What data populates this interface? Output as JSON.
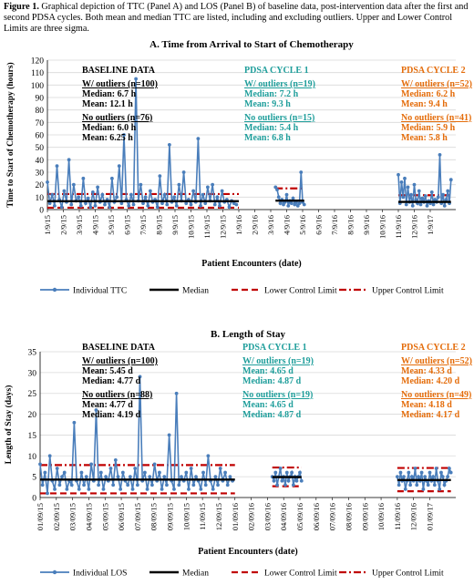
{
  "caption": {
    "label": "Figure 1.",
    "text": "Graphical depiction of TTC (Panel A) and LOS (Panel B) of baseline data, post-intervention data after the first and second PDSA cycles. Both mean and median TTC are listed, including and excluding outliers. Upper and Lower Control Limits are three sigma."
  },
  "colors": {
    "series": "#4a7ebb",
    "median": "#000000",
    "limit": "#c00000",
    "cycle1": "#1f9e9b",
    "cycle2": "#e46c0a",
    "grid": "#d9d9d9"
  },
  "chart_data": [
    {
      "type": "line",
      "title": "A. Time from Arrival to Start of Chemotherapy",
      "ylabel": "Time to Start of Chemotherapy (hours)",
      "xlabel": "Patient Encounters (date)",
      "ylim": [
        0,
        120
      ],
      "yticks": [
        "0",
        "10",
        "20",
        "30",
        "40",
        "50",
        "60",
        "70",
        "80",
        "90",
        "100",
        "110",
        "120"
      ],
      "xticks": [
        "1/9/15",
        "2/9/15",
        "3/9/15",
        "4/9/15",
        "5/9/15",
        "6/9/15",
        "7/9/15",
        "8/9/15",
        "9/9/15",
        "10/9/15",
        "11/9/15",
        "12/9/15",
        "1/9/16",
        "2/9/16",
        "3/9/16",
        "4/9/16",
        "5/9/16",
        "6/9/16",
        "7/9/16",
        "8/9/16",
        "9/9/16",
        "10/9/16",
        "11/9/16",
        "12/9/16",
        "1/9/17"
      ],
      "grid": "horizontal",
      "legend": [
        "Individual TTC",
        "Median",
        "Lower Control Limit",
        "Upper Control Limit"
      ],
      "segments": [
        {
          "name": "Baseline",
          "x": [
            0.0,
            0.15,
            0.3,
            0.45,
            0.6,
            0.75,
            0.9,
            1.05,
            1.2,
            1.35,
            1.5,
            1.65,
            1.8,
            1.95,
            2.1,
            2.25,
            2.4,
            2.55,
            2.7,
            2.85,
            3.0,
            3.15,
            3.3,
            3.45,
            3.6,
            3.75,
            3.9,
            4.05,
            4.2,
            4.35,
            4.5,
            4.65,
            4.8,
            4.95,
            5.1,
            5.25,
            5.4,
            5.55,
            5.7,
            5.85,
            6.0,
            6.15,
            6.3,
            6.45,
            6.6,
            6.75,
            6.9,
            7.05,
            7.2,
            7.35,
            7.5,
            7.65,
            7.8,
            7.95,
            8.1,
            8.25,
            8.4,
            8.55,
            8.7,
            8.85,
            9.0,
            9.15,
            9.3,
            9.45,
            9.6,
            9.75,
            9.9,
            10.05,
            10.2,
            10.35,
            10.5,
            10.65,
            10.8,
            10.95,
            11.1,
            11.25,
            11.4,
            11.55,
            11.7,
            11.85
          ],
          "y": [
            22,
            5,
            12,
            3,
            35,
            8,
            2,
            15,
            6,
            40,
            4,
            20,
            7,
            10,
            3,
            25,
            5,
            9,
            2,
            14,
            3,
            18,
            6,
            12,
            4,
            8,
            2,
            25,
            6,
            10,
            35,
            5,
            60,
            8,
            3,
            12,
            4,
            105,
            7,
            20,
            5,
            10,
            3,
            15,
            6,
            8,
            2,
            27,
            5,
            12,
            4,
            52,
            6,
            10,
            3,
            20,
            7,
            30,
            5,
            8,
            4,
            15,
            6,
            57,
            3,
            12,
            5,
            18,
            7,
            20,
            4,
            10,
            3,
            15,
            6,
            8,
            2,
            7,
            5,
            4
          ]
        },
        {
          "name": "PDSA Cycle 1",
          "x": [
            14.3,
            14.4,
            14.5,
            14.6,
            14.7,
            14.8,
            14.9,
            15.0,
            15.1,
            15.2,
            15.3,
            15.4,
            15.5,
            15.6,
            15.7,
            15.8,
            15.9,
            16.0,
            16.1
          ],
          "y": [
            18,
            16,
            10,
            5,
            8,
            4,
            6,
            12,
            3,
            7,
            5,
            9,
            4,
            6,
            3,
            5,
            30,
            6,
            4
          ]
        },
        {
          "name": "PDSA Cycle 2",
          "x": [
            22.0,
            22.1,
            22.2,
            22.3,
            22.4,
            22.5,
            22.6,
            22.7,
            22.8,
            22.9,
            23.0,
            23.1,
            23.2,
            23.3,
            23.4,
            23.5,
            23.6,
            23.7,
            23.8,
            23.9,
            24.0,
            24.1,
            24.2,
            24.3,
            24.4,
            24.5,
            24.6,
            24.7,
            24.8,
            24.9,
            25.0,
            25.1,
            25.2,
            25.3
          ],
          "y": [
            28,
            5,
            22,
            10,
            25,
            4,
            18,
            6,
            12,
            3,
            20,
            8,
            5,
            15,
            4,
            9,
            6,
            11,
            3,
            7,
            5,
            14,
            4,
            8,
            6,
            10,
            44,
            5,
            12,
            3,
            8,
            15,
            5,
            24
          ]
        }
      ],
      "median": [
        {
          "x": [
            0,
            12
          ],
          "y": 6.7
        },
        {
          "x": [
            14.3,
            16.1
          ],
          "y": 7.2
        },
        {
          "x": [
            22,
            25.3
          ],
          "y": 6.2
        }
      ],
      "lower_control_limit": [
        {
          "x": [
            0,
            12
          ],
          "y": 1.5
        }
      ],
      "upper_control_limit": [
        {
          "x": [
            0,
            12
          ],
          "y": 12.5
        },
        {
          "x": [
            14.3,
            16.1
          ],
          "y": 17
        },
        {
          "x": [
            22,
            25.3
          ],
          "y": 11.5
        }
      ],
      "annotations": [
        {
          "lines": [
            "BASELINE DATA"
          ],
          "color": "#000000",
          "pos": "baseline"
        },
        {
          "lines": [
            "W/ outliers (n=100)",
            "Median: 6.7 h",
            "Mean: 12.1 h"
          ],
          "color": "#000000",
          "pos": "baseline"
        },
        {
          "lines": [
            "No outliers (n=76)",
            "Median: 6.0 h",
            "Mean: 6.25 h"
          ],
          "color": "#000000",
          "pos": "baseline"
        },
        {
          "lines": [
            "PDSA CYCLE 1"
          ],
          "color": "#1f9e9b",
          "pos": "cycle1"
        },
        {
          "lines": [
            "W/ outliers (n=19)",
            "Median: 7.2 h",
            "Mean: 9.3 h"
          ],
          "color": "#1f9e9b",
          "pos": "cycle1"
        },
        {
          "lines": [
            "No outliers (n=15)",
            "Median: 5.4 h",
            "Mean: 6.8 h"
          ],
          "color": "#1f9e9b",
          "pos": "cycle1"
        },
        {
          "lines": [
            "PDSA CYCLE 2"
          ],
          "color": "#e46c0a",
          "pos": "cycle2"
        },
        {
          "lines": [
            "W/ outliers (n=52)",
            "Median: 6.2 h",
            "Mean: 9.4 h"
          ],
          "color": "#e46c0a",
          "pos": "cycle2"
        },
        {
          "lines": [
            "No outliers (n=41)",
            "Median: 5.9 h",
            "Mean: 5.8 h"
          ],
          "color": "#e46c0a",
          "pos": "cycle2"
        }
      ]
    },
    {
      "type": "line",
      "title": "B. Length of Stay",
      "ylabel": "Length of Stay (days)",
      "xlabel": "Patient Encounters (date)",
      "ylim": [
        0,
        35
      ],
      "yticks": [
        "0",
        "5",
        "10",
        "15",
        "20",
        "25",
        "30",
        "35"
      ],
      "xticks": [
        "01/09/15",
        "02/09/15",
        "03/09/15",
        "04/09/15",
        "05/09/15",
        "06/09/15",
        "07/09/15",
        "08/09/15",
        "09/09/15",
        "10/09/15",
        "11/09/15",
        "12/09/15",
        "01/09/16",
        "02/09/16",
        "03/09/16",
        "04/09/16",
        "05/09/16",
        "06/09/16",
        "07/09/16",
        "08/09/16",
        "09/09/16",
        "10/09/16",
        "11/09/16",
        "12/09/16",
        "01/09/17"
      ],
      "grid": "horizontal",
      "legend": [
        "Individual LOS",
        "Median",
        "Lower Control Limit",
        "Upper Control Limit"
      ],
      "segments": [
        {
          "name": "Baseline",
          "x": [
            0.0,
            0.15,
            0.3,
            0.45,
            0.6,
            0.75,
            0.9,
            1.05,
            1.2,
            1.35,
            1.5,
            1.65,
            1.8,
            1.95,
            2.1,
            2.25,
            2.4,
            2.55,
            2.7,
            2.85,
            3.0,
            3.15,
            3.3,
            3.45,
            3.6,
            3.75,
            3.9,
            4.05,
            4.2,
            4.35,
            4.5,
            4.65,
            4.8,
            4.95,
            5.1,
            5.25,
            5.4,
            5.55,
            5.7,
            5.85,
            6.0,
            6.15,
            6.3,
            6.45,
            6.6,
            6.75,
            6.9,
            7.05,
            7.2,
            7.35,
            7.5,
            7.65,
            7.8,
            7.95,
            8.1,
            8.25,
            8.4,
            8.55,
            8.7,
            8.85,
            9.0,
            9.15,
            9.3,
            9.45,
            9.6,
            9.75,
            9.9,
            10.05,
            10.2,
            10.35,
            10.5,
            10.65,
            10.8,
            10.95,
            11.1,
            11.25,
            11.4,
            11.55,
            11.7,
            11.85
          ],
          "y": [
            8,
            3,
            6,
            1,
            10,
            4,
            2,
            7,
            3,
            5,
            6,
            2,
            4,
            3,
            18,
            4,
            2,
            6,
            3,
            5,
            2,
            8,
            4,
            21,
            3,
            6,
            2,
            5,
            4,
            7,
            3,
            9,
            5,
            2,
            6,
            4,
            3,
            5,
            2,
            7,
            3,
            29,
            4,
            6,
            2,
            5,
            3,
            8,
            4,
            6,
            2,
            5,
            3,
            15,
            4,
            2,
            25,
            3,
            5,
            4,
            6,
            2,
            7,
            3,
            5,
            4,
            2,
            6,
            3,
            10,
            4,
            2,
            5,
            3,
            7,
            4,
            6,
            3,
            5,
            4
          ]
        },
        {
          "name": "PDSA Cycle 1",
          "x": [
            14.3,
            14.4,
            14.5,
            14.6,
            14.7,
            14.8,
            14.9,
            15.0,
            15.1,
            15.2,
            15.3,
            15.4,
            15.5,
            15.6,
            15.7,
            15.8,
            15.9,
            16.0,
            16.1
          ],
          "y": [
            5,
            4,
            6,
            3,
            5,
            7,
            4,
            5,
            3,
            6,
            4,
            5,
            6,
            3,
            5,
            4,
            5,
            6,
            4
          ]
        },
        {
          "name": "PDSA Cycle 2",
          "x": [
            22.0,
            22.1,
            22.2,
            22.3,
            22.4,
            22.5,
            22.6,
            22.7,
            22.8,
            22.9,
            23.0,
            23.1,
            23.2,
            23.3,
            23.4,
            23.5,
            23.6,
            23.7,
            23.8,
            23.9,
            24.0,
            24.1,
            24.2,
            24.3,
            24.4,
            24.5,
            24.6,
            24.7,
            24.8,
            24.9,
            25.0,
            25.1,
            25.2,
            25.3
          ],
          "y": [
            5,
            3,
            6,
            4,
            5,
            2,
            4,
            6,
            3,
            5,
            4,
            7,
            3,
            5,
            4,
            6,
            2,
            5,
            4,
            3,
            6,
            4,
            5,
            3,
            7,
            4,
            2,
            6,
            5,
            3,
            4,
            5,
            7,
            6
          ]
        }
      ],
      "median": [
        {
          "x": [
            0,
            12
          ],
          "y": 4.3
        },
        {
          "x": [
            14.3,
            16.1
          ],
          "y": 4.9
        },
        {
          "x": [
            22,
            25.3
          ],
          "y": 4.2
        }
      ],
      "lower_control_limit": [
        {
          "x": [
            0,
            12
          ],
          "y": 1.0
        },
        {
          "x": [
            14.3,
            16.1
          ],
          "y": 2.7
        },
        {
          "x": [
            22,
            25.3
          ],
          "y": 1.5
        }
      ],
      "upper_control_limit": [
        {
          "x": [
            0,
            12
          ],
          "y": 7.8
        },
        {
          "x": [
            14.3,
            16.1
          ],
          "y": 7.2
        },
        {
          "x": [
            22,
            25.3
          ],
          "y": 7.1
        }
      ],
      "annotations": [
        {
          "lines": [
            "BASELINE DATA"
          ],
          "color": "#000000",
          "pos": "baseline"
        },
        {
          "lines": [
            "W/ outliers (n=100)",
            "Mean: 5.45 d",
            "Median: 4.77 d"
          ],
          "color": "#000000",
          "pos": "baseline"
        },
        {
          "lines": [
            "No outliers (n=88)",
            "Mean: 4.77 d",
            "Median: 4.19 d"
          ],
          "color": "#000000",
          "pos": "baseline"
        },
        {
          "lines": [
            "PDSA CYCLE 1"
          ],
          "color": "#1f9e9b",
          "pos": "cycle1"
        },
        {
          "lines": [
            "W/ outliers (n=19)",
            "Mean: 4.65 d",
            "Median: 4.87 d"
          ],
          "color": "#1f9e9b",
          "pos": "cycle1"
        },
        {
          "lines": [
            "No outliers (n=19)",
            "Mean: 4.65 d",
            "Median: 4.87 d"
          ],
          "color": "#1f9e9b",
          "pos": "cycle1"
        },
        {
          "lines": [
            "PDSA CYCLE 2"
          ],
          "color": "#e46c0a",
          "pos": "cycle2"
        },
        {
          "lines": [
            "W/ outliers (n=52)",
            "Mean: 4.33 d",
            "Median: 4.20 d"
          ],
          "color": "#e46c0a",
          "pos": "cycle2"
        },
        {
          "lines": [
            "No outliers (n=49)",
            "Mean: 4.18 d",
            "Median: 4.17 d"
          ],
          "color": "#e46c0a",
          "pos": "cycle2"
        }
      ]
    }
  ]
}
